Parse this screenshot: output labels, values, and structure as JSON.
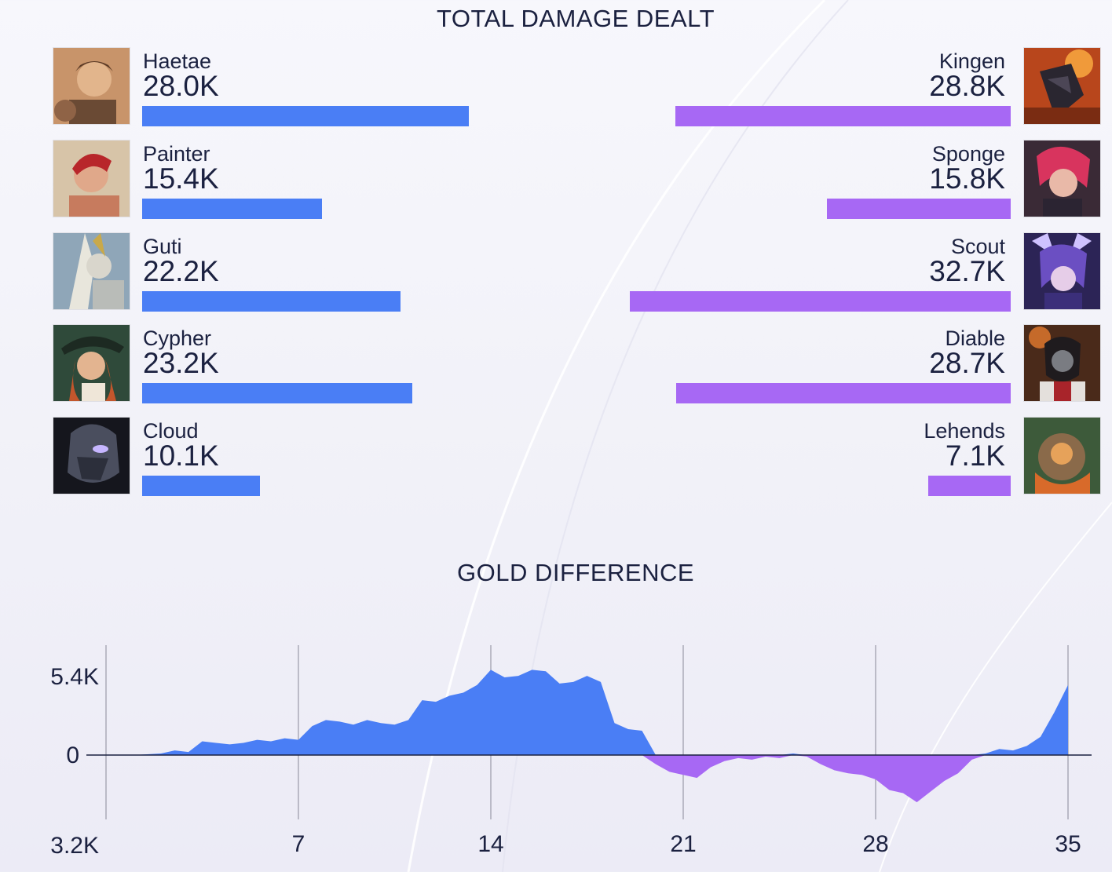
{
  "colors": {
    "blue_team": "#4a7ef5",
    "purple_team": "#a768f4",
    "text": "#1b2140"
  },
  "damage": {
    "title": "TOTAL DAMAGE DEALT",
    "blue_players": [
      {
        "name": "Haetae",
        "value": 28.0,
        "label": "28.0K"
      },
      {
        "name": "Painter",
        "value": 15.4,
        "label": "15.4K"
      },
      {
        "name": "Guti",
        "value": 22.2,
        "label": "22.2K"
      },
      {
        "name": "Cypher",
        "value": 23.2,
        "label": "23.2K"
      },
      {
        "name": "Cloud",
        "value": 10.1,
        "label": "10.1K"
      }
    ],
    "purple_players": [
      {
        "name": "Kingen",
        "value": 28.8,
        "label": "28.8K"
      },
      {
        "name": "Sponge",
        "value": 15.8,
        "label": "15.8K"
      },
      {
        "name": "Scout",
        "value": 32.7,
        "label": "32.7K"
      },
      {
        "name": "Diable",
        "value": 28.7,
        "label": "28.7K"
      },
      {
        "name": "Lehends",
        "value": 7.1,
        "label": "7.1K"
      }
    ]
  },
  "chart_data": [
    {
      "type": "bar",
      "title": "TOTAL DAMAGE DEALT",
      "unit": "K",
      "series": [
        {
          "values": [
            28.0,
            15.4,
            22.2,
            23.2,
            10.1
          ],
          "categories": [
            "Haetae",
            "Painter",
            "Guti",
            "Cypher",
            "Cloud"
          ]
        },
        {
          "values": [
            28.8,
            15.8,
            32.7,
            28.7,
            7.1
          ],
          "categories": [
            "Kingen",
            "Sponge",
            "Scout",
            "Diable",
            "Lehends"
          ]
        }
      ]
    },
    {
      "type": "area",
      "title": "GOLD DIFFERENCE",
      "xlim": [
        0,
        35
      ],
      "ylim": [
        -3.2,
        5.4
      ],
      "x_ticks": [
        7,
        14,
        21,
        28,
        35
      ],
      "x_tick_labels": [
        "7",
        "14",
        "21",
        "28",
        "35"
      ],
      "y_tick_labels": [
        "5.4K",
        "0",
        "3.2K"
      ],
      "y_ticks": [
        5.4,
        0,
        -3.2
      ],
      "x": [
        0,
        0.5,
        1,
        1.5,
        2,
        2.5,
        3,
        3.5,
        4,
        4.5,
        5,
        5.5,
        6,
        6.5,
        7,
        7.5,
        8,
        8.5,
        9,
        9.5,
        10,
        10.5,
        11,
        11.5,
        12,
        12.5,
        13,
        13.5,
        14,
        14.5,
        15,
        15.5,
        16,
        16.5,
        17,
        17.5,
        18,
        18.5,
        19,
        19.5,
        20,
        20.5,
        21,
        21.5,
        22,
        22.5,
        23,
        23.5,
        24,
        24.5,
        25,
        25.5,
        26,
        26.5,
        27,
        27.5,
        28,
        28.5,
        29,
        29.5,
        30,
        30.5,
        31,
        31.5,
        32,
        32.5,
        33,
        33.5,
        34,
        34.5,
        35
      ],
      "y": [
        0,
        0,
        0,
        0.05,
        0.1,
        0.3,
        0.2,
        0.9,
        0.8,
        0.7,
        0.8,
        1.0,
        0.9,
        1.1,
        1.0,
        1.9,
        2.3,
        2.2,
        2.0,
        2.3,
        2.1,
        2.0,
        2.3,
        3.6,
        3.5,
        3.9,
        4.1,
        4.6,
        5.6,
        5.1,
        5.2,
        5.6,
        5.5,
        4.7,
        4.8,
        5.2,
        4.8,
        2.1,
        1.7,
        1.6,
        -0.6,
        -1.1,
        -1.3,
        -1.5,
        -0.8,
        -0.4,
        -0.2,
        -0.3,
        -0.1,
        -0.2,
        0.1,
        -0.1,
        -0.6,
        -1.0,
        -1.2,
        -1.3,
        -1.6,
        -2.3,
        -2.5,
        -3.1,
        -2.4,
        -1.7,
        -1.2,
        -0.3,
        0.1,
        0.4,
        0.3,
        0.6,
        1.2,
        2.8,
        4.6
      ]
    }
  ],
  "gold": {
    "title": "GOLD DIFFERENCE"
  }
}
